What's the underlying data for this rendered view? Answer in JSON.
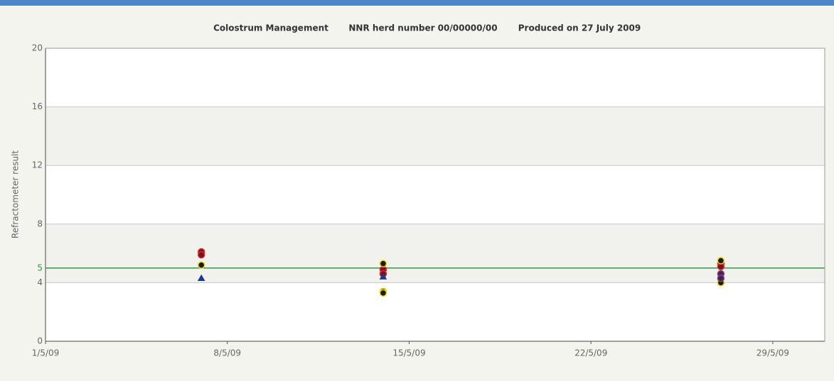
{
  "chart_data": {
    "type": "scatter",
    "header": [
      "Colostrum Management",
      "NNR herd number 00/00000/00",
      "Produced on 27 July 2009"
    ],
    "y_label": "Refractometer result",
    "xlim": [
      "2009-05-01",
      "2009-05-31"
    ],
    "xticks": [
      {
        "value": "2009-05-01",
        "label": "1/5/09"
      },
      {
        "value": "2009-05-08",
        "label": "8/5/09"
      },
      {
        "value": "2009-05-15",
        "label": "15/5/09"
      },
      {
        "value": "2009-05-22",
        "label": "22/5/09"
      },
      {
        "value": "2009-05-29",
        "label": "29/5/09"
      }
    ],
    "ylim": [
      0,
      20
    ],
    "yticks": [
      0,
      4,
      8,
      12,
      16,
      20
    ],
    "grid": true,
    "bands": [
      [
        4,
        8
      ],
      [
        12,
        16
      ]
    ],
    "reference_line": {
      "value": 5,
      "label": "5",
      "color": "#2e9a3c"
    },
    "series": [
      {
        "color": "#7a1020",
        "edge": "#e02828",
        "marker": "circle",
        "x": [
          "2009-05-07",
          "2009-05-07",
          "2009-05-14",
          "2009-05-14",
          "2009-05-27",
          "2009-05-27"
        ],
        "values": [
          6.1,
          5.9,
          4.9,
          4.6,
          5.3,
          5.1
        ]
      },
      {
        "color": "#1a1a1a",
        "edge": "#e8d800",
        "marker": "circle",
        "x": [
          "2009-05-07",
          "2009-05-14",
          "2009-05-14",
          "2009-05-14",
          "2009-05-27",
          "2009-05-27"
        ],
        "values": [
          5.2,
          5.3,
          3.4,
          3.3,
          5.5,
          4.0
        ]
      },
      {
        "color": "#4a2050",
        "edge": "#7a4a80",
        "marker": "circle",
        "x": [
          "2009-05-27",
          "2009-05-27"
        ],
        "values": [
          4.6,
          4.3
        ]
      },
      {
        "color": "#1a3a8a",
        "edge": "#1a3a8a",
        "marker": "triangle",
        "x": [
          "2009-05-07",
          "2009-05-14"
        ],
        "values": [
          4.3,
          4.4
        ]
      }
    ]
  }
}
